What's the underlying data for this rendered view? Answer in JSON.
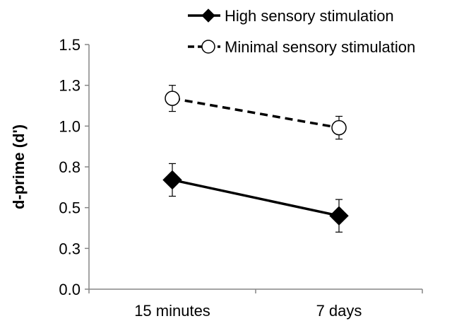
{
  "chart_data": {
    "type": "line",
    "title": "",
    "xlabel": "",
    "ylabel": "d-prime (d')",
    "categories": [
      "15 minutes",
      "7 days"
    ],
    "y_ticks": [
      "0.0",
      "0.3",
      "0.5",
      "0.8",
      "1.0",
      "1.3",
      "1.5"
    ],
    "ylim": [
      0,
      1.5
    ],
    "grid": false,
    "legend_position": "top-right",
    "series": [
      {
        "name": "High sensory stimulation",
        "values": [
          0.67,
          0.45
        ],
        "error": [
          0.1,
          0.1
        ],
        "marker": "filled-diamond",
        "line_style": "solid",
        "color": "#000000"
      },
      {
        "name": "Minimal sensory stimulation",
        "values": [
          1.17,
          0.99
        ],
        "error": [
          0.08,
          0.07
        ],
        "marker": "open-circle",
        "line_style": "dashed",
        "color": "#000000"
      }
    ]
  }
}
